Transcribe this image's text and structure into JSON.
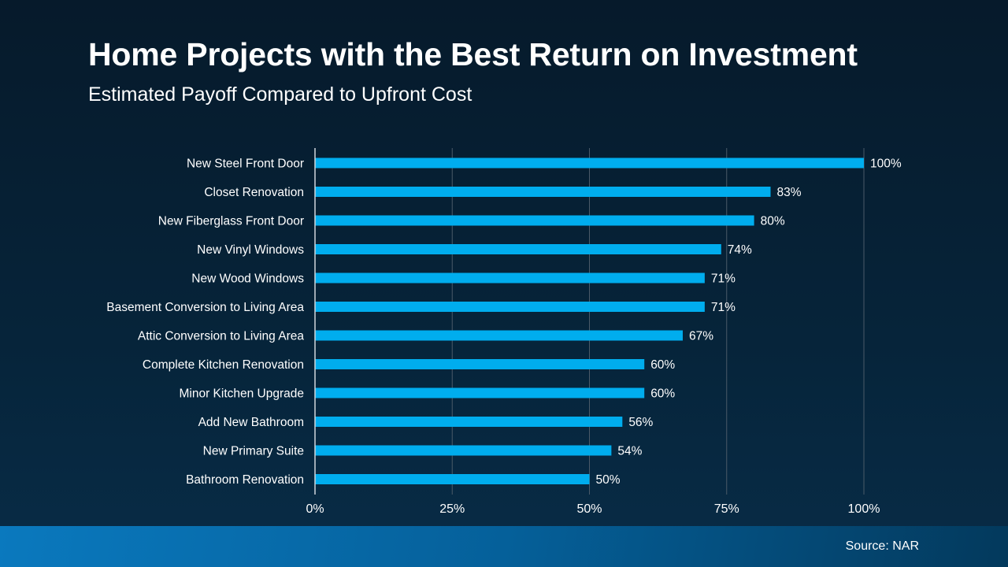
{
  "title": "Home Projects with the Best Return on Investment",
  "subtitle": "Estimated Payoff Compared to Upfront Cost",
  "source": "Source: NAR",
  "chart_data": {
    "type": "bar",
    "orientation": "horizontal",
    "categories": [
      "New Steel Front Door",
      "Closet Renovation",
      "New Fiberglass Front Door",
      "New Vinyl Windows",
      "New Wood Windows",
      "Basement Conversion to Living Area",
      "Attic Conversion to Living Area",
      "Complete Kitchen Renovation",
      "Minor Kitchen Upgrade",
      "Add New Bathroom",
      "New Primary Suite",
      "Bathroom Renovation"
    ],
    "values": [
      100,
      83,
      80,
      74,
      71,
      71,
      67,
      60,
      60,
      56,
      54,
      50
    ],
    "data_labels": [
      "100%",
      "83%",
      "80%",
      "74%",
      "71%",
      "71%",
      "67%",
      "60%",
      "60%",
      "56%",
      "54%",
      "50%"
    ],
    "xlim": [
      0,
      100
    ],
    "xticks": [
      0,
      25,
      50,
      75,
      100
    ],
    "xtick_labels": [
      "0%",
      "25%",
      "50%",
      "75%",
      "100%"
    ],
    "grid": true,
    "bar_color": "#00adee",
    "grid_color": "#4a5a68"
  }
}
